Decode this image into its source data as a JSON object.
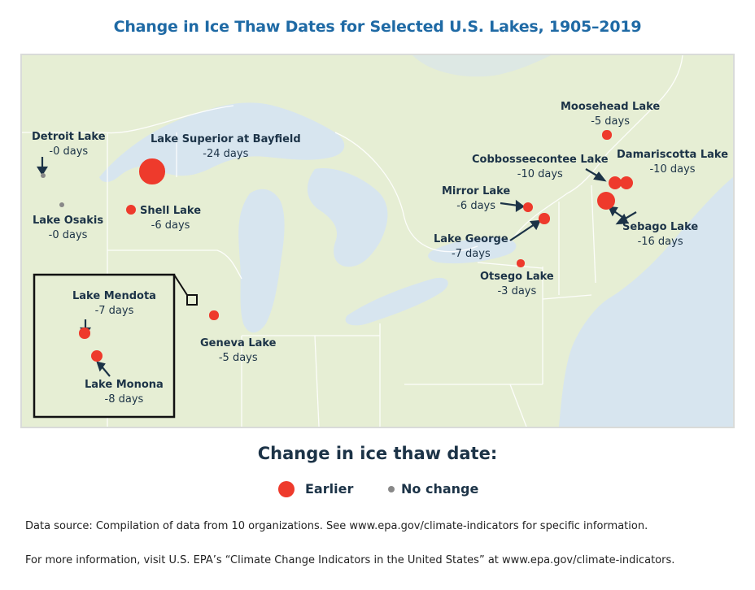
{
  "title": "Change in Ice Thaw Dates for Selected U.S. Lakes, 1905–2019",
  "lakes": [
    {
      "name": "Detroit Lake",
      "change": "-0 days",
      "category": "no-change"
    },
    {
      "name": "Lake Superior at Bayfield",
      "change": "-24 days",
      "category": "earlier"
    },
    {
      "name": "Shell Lake",
      "change": "-6 days",
      "category": "earlier"
    },
    {
      "name": "Lake Osakis",
      "change": "-0 days",
      "category": "no-change"
    },
    {
      "name": "Lake Mendota",
      "change": "-7 days",
      "category": "earlier"
    },
    {
      "name": "Lake Monona",
      "change": "-8 days",
      "category": "earlier"
    },
    {
      "name": "Geneva Lake",
      "change": "-5 days",
      "category": "earlier"
    },
    {
      "name": "Mirror Lake",
      "change": "-6 days",
      "category": "earlier"
    },
    {
      "name": "Lake George",
      "change": "-7 days",
      "category": "earlier"
    },
    {
      "name": "Otsego Lake",
      "change": "-3 days",
      "category": "earlier"
    },
    {
      "name": "Moosehead Lake",
      "change": "-5 days",
      "category": "earlier"
    },
    {
      "name": "Cobbosseecontee Lake",
      "change": "-10 days",
      "category": "earlier"
    },
    {
      "name": "Damariscotta Lake",
      "change": "-10 days",
      "category": "earlier"
    },
    {
      "name": "Sebago Lake",
      "change": "-16 days",
      "category": "earlier"
    }
  ],
  "legend": {
    "title": "Change in ice thaw date:",
    "earlier": "Earlier",
    "no_change": "No change"
  },
  "colors": {
    "earlier": "#ee3a2c",
    "no_change": "#888888",
    "land": "#e6eed4",
    "water": "#d7e5ef",
    "title": "#1f6aa5"
  },
  "footer": {
    "source": "Data source: Compilation of data from 10 organizations. See www.epa.gov/climate-indicators for specific information.",
    "more_info": "For more information, visit U.S. EPA’s “Climate Change Indicators in the United States” at www.epa.gov/climate-indicators."
  }
}
